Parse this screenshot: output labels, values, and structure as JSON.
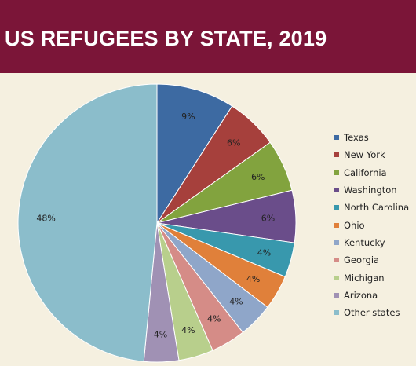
{
  "header": {
    "title": "US REFUGEES BY STATE, 2019"
  },
  "chart_data": {
    "type": "pie",
    "title": "US REFUGEES BY STATE, 2019",
    "legend_position": "right",
    "slices": [
      {
        "label": "Texas",
        "value": 9,
        "display": "9%",
        "color": "#3d6aa2"
      },
      {
        "label": "New York",
        "value": 6,
        "display": "6%",
        "color": "#a6403c"
      },
      {
        "label": "California",
        "value": 6,
        "display": "6%",
        "color": "#82a33e"
      },
      {
        "label": "Washington",
        "value": 6,
        "display": "6%",
        "color": "#6a4d8a"
      },
      {
        "label": "North Carolina",
        "value": 4,
        "display": "4%",
        "color": "#3898ad"
      },
      {
        "label": "Ohio",
        "value": 4,
        "display": "4%",
        "color": "#e0803a"
      },
      {
        "label": "Kentucky",
        "value": 4,
        "display": "4%",
        "color": "#8fa6c9"
      },
      {
        "label": "Georgia",
        "value": 4,
        "display": "4%",
        "color": "#d58c87"
      },
      {
        "label": "Michigan",
        "value": 4,
        "display": "4%",
        "color": "#b8cf8c"
      },
      {
        "label": "Arizona",
        "value": 4,
        "display": "4%",
        "color": "#a091b4"
      },
      {
        "label": "Other states",
        "value": 48,
        "display": "48%",
        "color": "#8bbdcb"
      }
    ]
  }
}
